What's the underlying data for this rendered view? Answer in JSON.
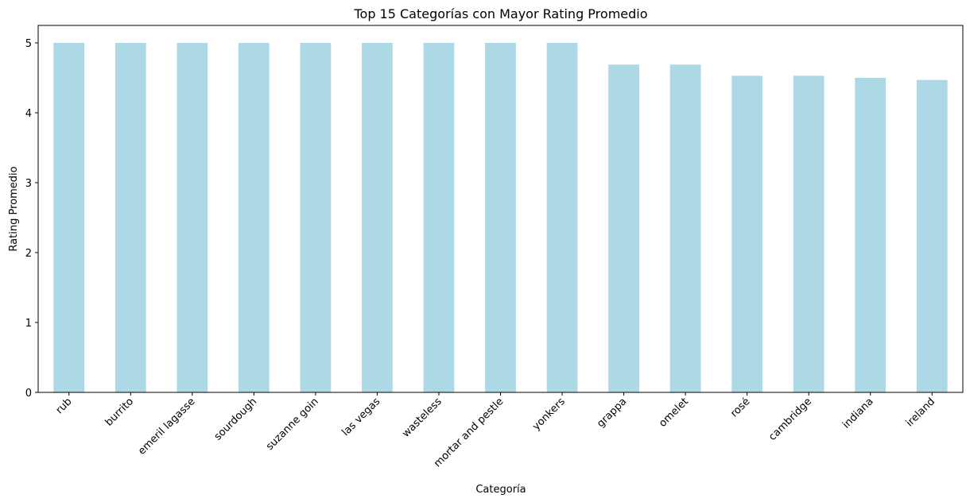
{
  "chart_data": {
    "type": "bar",
    "title": "Top 15 Categorías con Mayor Rating Promedio",
    "xlabel": "Categoría",
    "ylabel": "Rating Promedio",
    "categories": [
      "rub",
      "burrito",
      "emeril lagasse",
      "sourdough",
      "suzanne goin",
      "las vegas",
      "wasteless",
      "mortar and pestle",
      "yonkers",
      "grappa",
      "omelet",
      "rosé",
      "cambridge",
      "indiana",
      "ireland"
    ],
    "values": [
      5.0,
      5.0,
      5.0,
      5.0,
      5.0,
      5.0,
      5.0,
      5.0,
      5.0,
      4.69,
      4.69,
      4.53,
      4.53,
      4.5,
      4.47
    ],
    "ylim": [
      0,
      5.25
    ],
    "yticks": [
      0,
      1,
      2,
      3,
      4,
      5
    ],
    "bar_color": "#add8e6",
    "grid": false,
    "legend": "none"
  }
}
